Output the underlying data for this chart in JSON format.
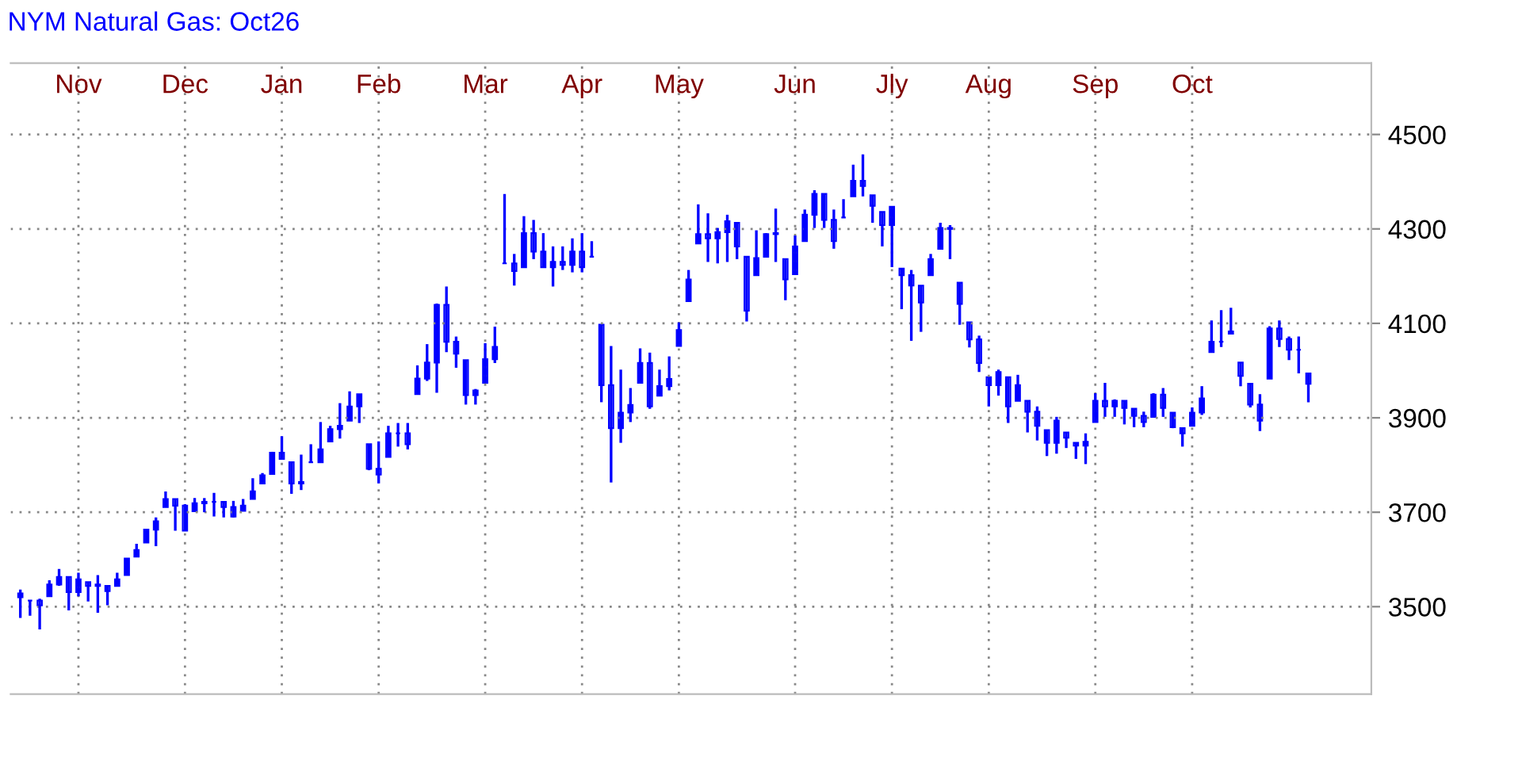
{
  "chart_data": {
    "type": "candlestick",
    "title": "NYM Natural Gas: Oct26",
    "color": "#0000ff",
    "grid": true,
    "categories": [
      null,
      null,
      null,
      null,
      null,
      null,
      "Nov",
      null,
      null,
      null,
      null,
      null,
      null,
      null,
      null,
      null,
      null,
      "Dec",
      null,
      null,
      null,
      null,
      null,
      null,
      null,
      null,
      null,
      "Jan",
      null,
      null,
      null,
      null,
      null,
      null,
      null,
      null,
      null,
      "Feb",
      null,
      null,
      null,
      null,
      null,
      null,
      null,
      null,
      null,
      null,
      "Mar",
      null,
      null,
      null,
      null,
      null,
      null,
      null,
      null,
      null,
      "Apr",
      null,
      null,
      null,
      null,
      null,
      null,
      null,
      null,
      null,
      "May",
      null,
      null,
      null,
      null,
      null,
      null,
      null,
      null,
      null,
      null,
      null,
      "Jun",
      null,
      null,
      null,
      null,
      null,
      null,
      null,
      null,
      null,
      "Jly",
      null,
      null,
      null,
      null,
      null,
      null,
      null,
      null,
      null,
      "Aug",
      null,
      null,
      null,
      null,
      null,
      null,
      null,
      null,
      null,
      null,
      "Sep",
      null,
      null,
      null,
      null,
      null,
      null,
      null,
      null,
      null,
      "Oct",
      null,
      null,
      null,
      null,
      null,
      null,
      null,
      null,
      null,
      null,
      null,
      null
    ],
    "ylim": [
      3315,
      4651
    ],
    "yticks": [
      3500,
      3700,
      3900,
      4100,
      4300,
      4500
    ],
    "ohlc": [
      [
        3520,
        3536,
        3476,
        3528
      ],
      [
        3513,
        3513,
        3481,
        3513
      ],
      [
        3513,
        3517,
        3452,
        3503
      ],
      [
        3522,
        3556,
        3522,
        3547
      ],
      [
        3547,
        3580,
        3544,
        3563
      ],
      [
        3563,
        3564,
        3492,
        3531
      ],
      [
        3531,
        3572,
        3522,
        3558
      ],
      [
        3552,
        3552,
        3511,
        3544
      ],
      [
        3544,
        3567,
        3487,
        3547
      ],
      [
        3544,
        3544,
        3503,
        3533
      ],
      [
        3544,
        3572,
        3544,
        3558
      ],
      [
        3567,
        3602,
        3567,
        3602
      ],
      [
        3606,
        3633,
        3606,
        3620
      ],
      [
        3636,
        3663,
        3636,
        3663
      ],
      [
        3663,
        3689,
        3628,
        3681
      ],
      [
        3711,
        3744,
        3711,
        3728
      ],
      [
        3728,
        3728,
        3661,
        3714
      ],
      [
        3714,
        3717,
        3661,
        3661
      ],
      [
        3702,
        3730,
        3702,
        3719
      ],
      [
        3719,
        3730,
        3700,
        3722
      ],
      [
        3722,
        3741,
        3691,
        3722
      ],
      [
        3722,
        3722,
        3689,
        3711
      ],
      [
        3711,
        3724,
        3689,
        3691
      ],
      [
        3703,
        3728,
        3703,
        3714
      ],
      [
        3728,
        3772,
        3728,
        3744
      ],
      [
        3761,
        3783,
        3761,
        3778
      ],
      [
        3781,
        3828,
        3781,
        3826
      ],
      [
        3826,
        3861,
        3813,
        3813
      ],
      [
        3806,
        3806,
        3739,
        3761
      ],
      [
        3761,
        3822,
        3747,
        3764
      ],
      [
        3806,
        3844,
        3806,
        3806
      ],
      [
        3806,
        3891,
        3806,
        3833
      ],
      [
        3850,
        3883,
        3850,
        3876
      ],
      [
        3876,
        3931,
        3856,
        3883
      ],
      [
        3894,
        3956,
        3894,
        3924
      ],
      [
        3924,
        3950,
        3889,
        3950
      ],
      [
        3844,
        3844,
        3789,
        3792
      ],
      [
        3792,
        3850,
        3761,
        3780
      ],
      [
        3817,
        3883,
        3817,
        3867
      ],
      [
        3867,
        3889,
        3839,
        3867
      ],
      [
        3867,
        3889,
        3833,
        3844
      ],
      [
        3950,
        4011,
        3950,
        3983
      ],
      [
        3983,
        4056,
        3978,
        4017
      ],
      [
        4017,
        4142,
        3953,
        4139
      ],
      [
        4139,
        4178,
        4039,
        4061
      ],
      [
        4061,
        4072,
        4006,
        4036
      ],
      [
        4022,
        4022,
        3928,
        3948
      ],
      [
        3948,
        3961,
        3928,
        3958
      ],
      [
        3974,
        4058,
        3974,
        4024
      ],
      [
        4024,
        4093,
        4016,
        4050
      ],
      [
        4227,
        4374,
        4227,
        4227
      ],
      [
        4227,
        4247,
        4180,
        4211
      ],
      [
        4219,
        4327,
        4219,
        4291
      ],
      [
        4291,
        4319,
        4236,
        4252
      ],
      [
        4252,
        4291,
        4219,
        4219
      ],
      [
        4219,
        4263,
        4178,
        4230
      ],
      [
        4230,
        4263,
        4213,
        4224
      ],
      [
        4224,
        4280,
        4208,
        4252
      ],
      [
        4252,
        4291,
        4208,
        4219
      ],
      [
        4241,
        4274,
        4241,
        4241
      ],
      [
        4097,
        4097,
        3933,
        3969
      ],
      [
        3969,
        4052,
        3763,
        3878
      ],
      [
        3878,
        4002,
        3847,
        3911
      ],
      [
        3911,
        3963,
        3891,
        3927
      ],
      [
        3974,
        4047,
        3974,
        4016
      ],
      [
        4016,
        4038,
        3919,
        3924
      ],
      [
        3947,
        4002,
        3947,
        3967
      ],
      [
        3967,
        4030,
        3958,
        3982
      ],
      [
        4052,
        4102,
        4052,
        4086
      ],
      [
        4147,
        4213,
        4147,
        4193
      ],
      [
        4269,
        4352,
        4269,
        4289
      ],
      [
        4289,
        4333,
        4230,
        4280
      ],
      [
        4280,
        4302,
        4227,
        4293
      ],
      [
        4293,
        4330,
        4230,
        4316
      ],
      [
        4313,
        4313,
        4236,
        4263
      ],
      [
        4241,
        4241,
        4104,
        4127
      ],
      [
        4202,
        4297,
        4202,
        4238
      ],
      [
        4241,
        4291,
        4241,
        4289
      ],
      [
        4289,
        4343,
        4230,
        4291
      ],
      [
        4236,
        4236,
        4149,
        4193
      ],
      [
        4204,
        4286,
        4204,
        4263
      ],
      [
        4274,
        4341,
        4274,
        4330
      ],
      [
        4330,
        4382,
        4302,
        4374
      ],
      [
        4374,
        4374,
        4302,
        4319
      ],
      [
        4319,
        4341,
        4258,
        4274
      ],
      [
        4324,
        4363,
        4324,
        4324
      ],
      [
        4369,
        4436,
        4369,
        4402
      ],
      [
        4402,
        4458,
        4369,
        4391
      ],
      [
        4371,
        4371,
        4313,
        4349
      ],
      [
        4336,
        4336,
        4263,
        4308
      ],
      [
        4308,
        4347,
        4219,
        4347
      ],
      [
        4216,
        4216,
        4130,
        4202
      ],
      [
        4202,
        4213,
        4063,
        4180
      ],
      [
        4180,
        4180,
        4082,
        4144
      ],
      [
        4202,
        4247,
        4202,
        4236
      ],
      [
        4258,
        4313,
        4258,
        4302
      ],
      [
        4302,
        4308,
        4236,
        4300
      ],
      [
        4186,
        4186,
        4097,
        4141
      ],
      [
        4102,
        4102,
        4049,
        4066
      ],
      [
        4066,
        4074,
        3997,
        4016
      ],
      [
        3986,
        3986,
        3924,
        3969
      ],
      [
        3969,
        4002,
        3947,
        3997
      ],
      [
        3986,
        3986,
        3889,
        3924
      ],
      [
        3936,
        3991,
        3936,
        3969
      ],
      [
        3936,
        3936,
        3869,
        3913
      ],
      [
        3913,
        3924,
        3852,
        3883
      ],
      [
        3874,
        3874,
        3819,
        3847
      ],
      [
        3847,
        3902,
        3824,
        3894
      ],
      [
        3869,
        3869,
        3836,
        3858
      ],
      [
        3847,
        3847,
        3813,
        3841
      ],
      [
        3841,
        3867,
        3802,
        3849
      ],
      [
        3891,
        3952,
        3891,
        3936
      ],
      [
        3936,
        3974,
        3902,
        3924
      ],
      [
        3924,
        3939,
        3902,
        3936
      ],
      [
        3936,
        3936,
        3886,
        3921
      ],
      [
        3919,
        3919,
        3880,
        3904
      ],
      [
        3904,
        3913,
        3880,
        3891
      ],
      [
        3902,
        3952,
        3902,
        3949
      ],
      [
        3949,
        3963,
        3902,
        3921
      ],
      [
        3911,
        3911,
        3878,
        3880
      ],
      [
        3878,
        3878,
        3839,
        3867
      ],
      [
        3883,
        3922,
        3883,
        3911
      ],
      [
        3911,
        3967,
        3906,
        3941
      ],
      [
        4039,
        4106,
        4039,
        4061
      ],
      [
        4061,
        4128,
        4050,
        4061
      ],
      [
        4078,
        4133,
        4078,
        4083
      ],
      [
        4017,
        4017,
        3967,
        3989
      ],
      [
        3972,
        3972,
        3922,
        3928
      ],
      [
        3928,
        3950,
        3872,
        3894
      ],
      [
        3983,
        4094,
        3983,
        4089
      ],
      [
        4089,
        4106,
        4050,
        4067
      ],
      [
        4067,
        4072,
        4022,
        4044
      ],
      [
        4044,
        4072,
        3994,
        4044
      ],
      [
        3994,
        3994,
        3933,
        3972
      ]
    ]
  }
}
